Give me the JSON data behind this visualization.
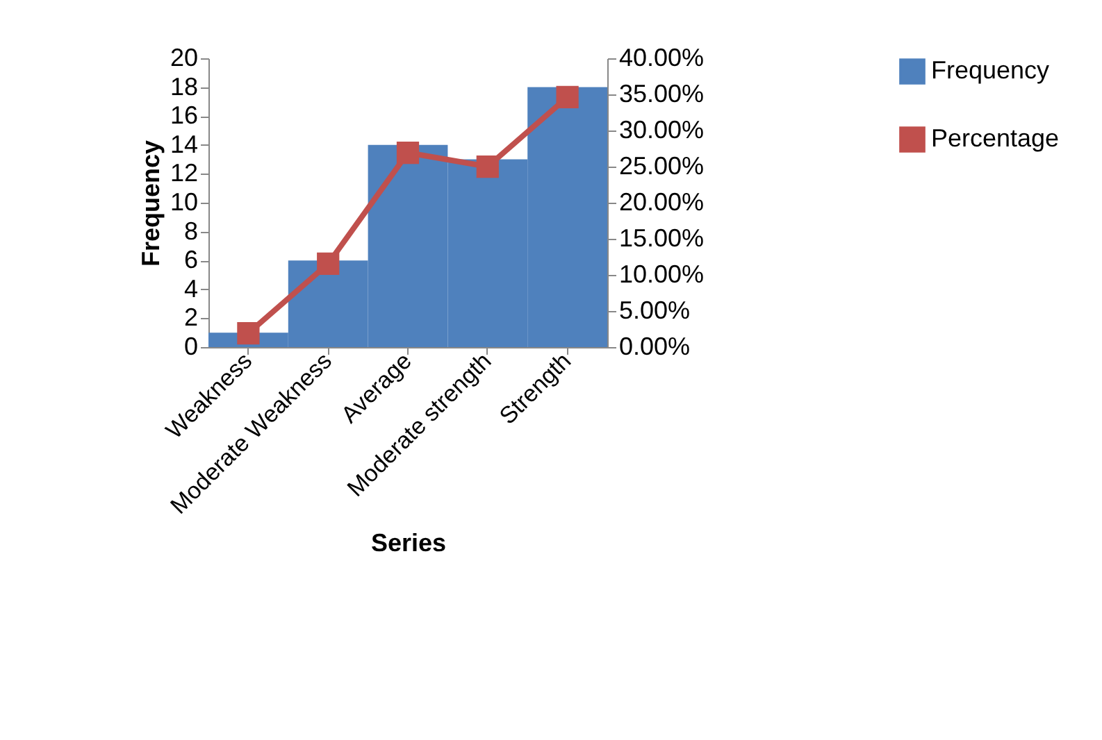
{
  "chart_data": {
    "type": "bar",
    "xlabel": "Series",
    "ylabel": "Frequency",
    "categories": [
      "Weakness",
      "Moderate Weakness",
      "Average",
      "Moderate strength",
      "Strength"
    ],
    "series": [
      {
        "name": "Frequency",
        "color": "#4f81bd",
        "values": [
          1,
          6,
          14,
          13,
          18
        ]
      },
      {
        "name": "Percentage",
        "type": "line",
        "axis": "y2",
        "color": "#c0504d",
        "values": [
          1.92,
          11.54,
          26.92,
          25,
          34.62
        ]
      }
    ],
    "ylim": [
      0,
      20
    ],
    "yticks": [
      0,
      2,
      4,
      6,
      8,
      10,
      12,
      14,
      16,
      18,
      20
    ],
    "y2lim": [
      0,
      40
    ],
    "y2ticks": [
      {
        "value": 0,
        "label": "0.00%"
      },
      {
        "value": 5,
        "label": "5.00%"
      },
      {
        "value": 10,
        "label": "10.00%"
      },
      {
        "value": 15,
        "label": "15.00%"
      },
      {
        "value": 20,
        "label": "20.00%"
      },
      {
        "value": 25,
        "label": "25.00%"
      },
      {
        "value": 30,
        "label": "30.00%"
      },
      {
        "value": 35,
        "label": "35.00%"
      },
      {
        "value": 40,
        "label": "40.00%"
      }
    ],
    "marker": "square",
    "legend": "right",
    "grid": false
  }
}
